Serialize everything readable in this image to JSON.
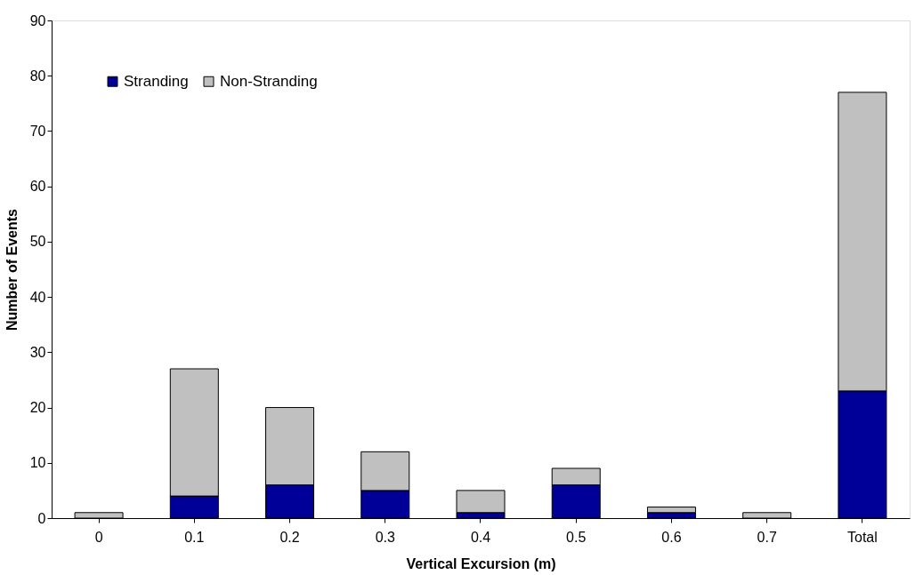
{
  "chart_data": {
    "type": "bar",
    "stacked": true,
    "xlabel": "Vertical Excursion (m)",
    "ylabel": "Number of Events",
    "categories": [
      "0",
      "0.1",
      "0.2",
      "0.3",
      "0.4",
      "0.5",
      "0.6",
      "0.7",
      "Total"
    ],
    "series": [
      {
        "name": "Stranding",
        "color": "#000099",
        "values": [
          0,
          4,
          6,
          5,
          1,
          6,
          1,
          0,
          23
        ]
      },
      {
        "name": "Non-Stranding",
        "color": "#c0c0c0",
        "values": [
          1,
          23,
          14,
          7,
          4,
          3,
          1,
          1,
          54
        ]
      }
    ],
    "ylim": [
      0,
      90
    ],
    "yticks": [
      0,
      10,
      20,
      30,
      40,
      50,
      60,
      70,
      80,
      90
    ],
    "grid": false,
    "legend": "top left"
  }
}
